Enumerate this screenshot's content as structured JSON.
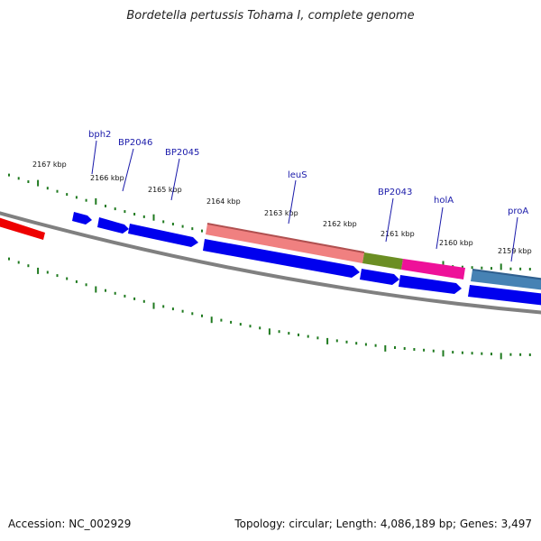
{
  "title": "Bordetella pertussis Tohama I, complete genome",
  "footer": {
    "accession": "Accession: NC_002929",
    "summary": "Topology: circular; Length: 4,086,189 bp; Genes: 3,497"
  },
  "colors": {
    "backbone": "#808080",
    "tick": "#1f7a1f",
    "forward_gene": "#0000ee",
    "leuS": "#f08080",
    "BP2043": "#6b8e23",
    "holA": "#ee1199",
    "proA": "#4682b4",
    "left_gene": "#ee0000",
    "label": "#1a1aaa"
  },
  "kbp_labels": [
    "2167 kbp",
    "2166 kbp",
    "2165 kbp",
    "2164 kbp",
    "2163 kbp",
    "2162 kbp",
    "2161 kbp",
    "2160 kbp",
    "2159 kbp"
  ],
  "gene_labels": [
    "bph2",
    "BP2046",
    "BP2045",
    "leuS",
    "BP2043",
    "holA",
    "proA"
  ]
}
